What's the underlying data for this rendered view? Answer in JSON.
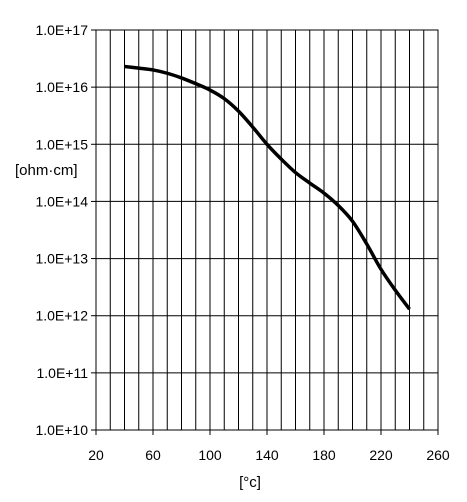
{
  "chart_data": {
    "type": "line",
    "title": "",
    "xlabel": "[°c]",
    "ylabel": "[ohm·cm]",
    "xlim": [
      20,
      260
    ],
    "ylim": [
      10000000000.0,
      1e+17
    ],
    "yscale": "log",
    "grid": true,
    "x_tick_values": [
      20,
      60,
      100,
      140,
      180,
      220,
      260
    ],
    "x_tick_labels": [
      "20",
      "60",
      "100",
      "140",
      "180",
      "220",
      "260"
    ],
    "y_tick_values": [
      1e+17,
      1e+16,
      1000000000000000.0,
      100000000000000.0,
      10000000000000.0,
      1000000000000.0,
      100000000000.0,
      10000000000.0
    ],
    "y_tick_labels": [
      "1.0E+17",
      "1.0E+16",
      "1.0E+15",
      "1.0E+14",
      "1.0E+13",
      "1.0E+12",
      "1.0E+11",
      "1.0E+10"
    ],
    "series": [
      {
        "x": [
          40,
          50,
          60,
          70,
          80,
          90,
          100,
          110,
          120,
          130,
          140,
          150,
          160,
          170,
          180,
          190,
          200,
          210,
          220,
          230,
          240
        ],
        "y": [
          2.3e+16,
          2.15e+16,
          2e+16,
          1.75e+16,
          1.45e+16,
          1.15e+16,
          8900000000000000.0,
          6300000000000000.0,
          3800000000000000.0,
          2000000000000000.0,
          1000000000000000.0,
          550000000000000.0,
          320000000000000.0,
          210000000000000.0,
          140000000000000.0,
          85000000000000.0,
          45000000000000.0,
          18000000000000.0,
          6500000000000.0,
          2800000000000.0,
          1300000000000.0
        ],
        "color": "#000000"
      }
    ]
  }
}
